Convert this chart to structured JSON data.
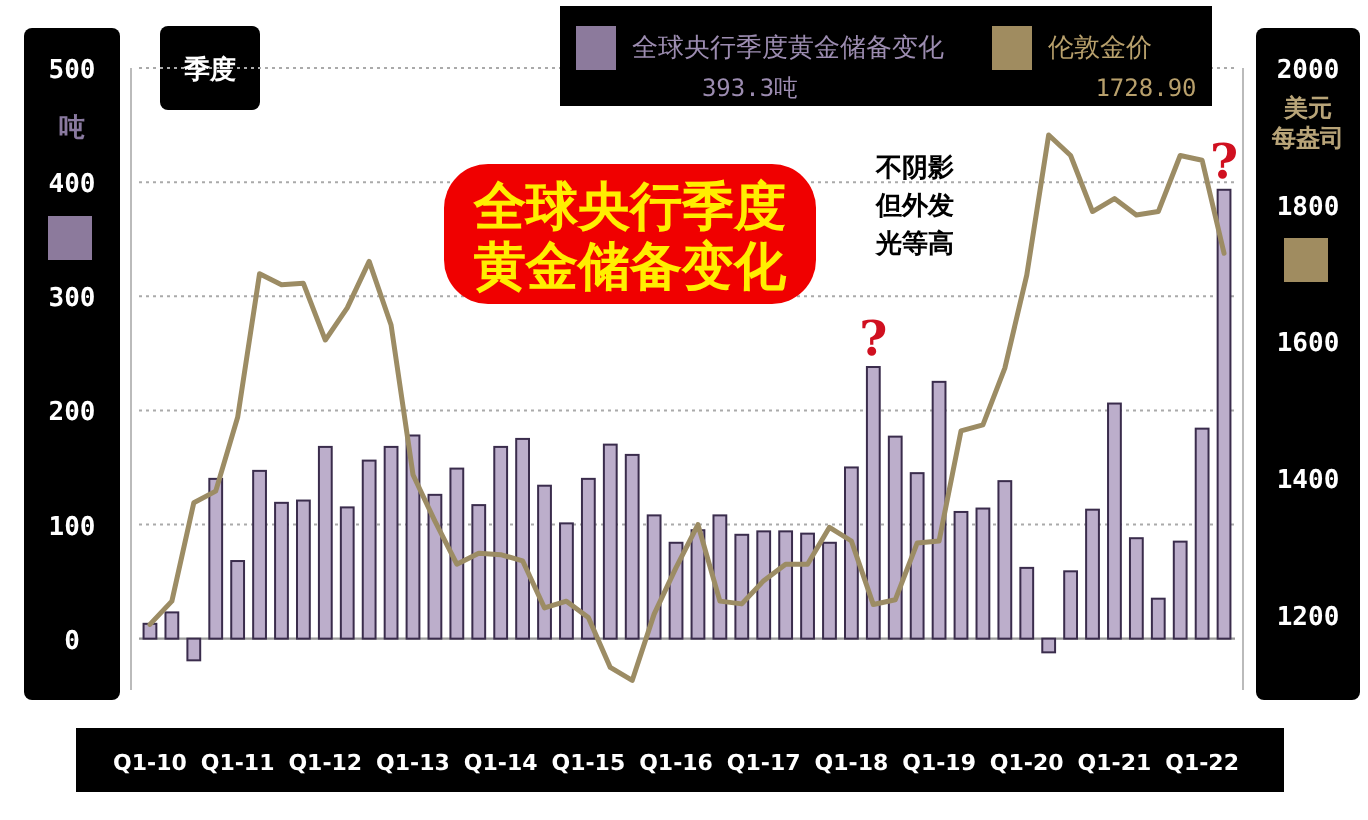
{
  "chart_data": {
    "type": "bar",
    "title": "全球央行季度黄金储备变化",
    "xlabel": "季度",
    "ylabel": "吨",
    "y2label": "美元每盎司",
    "categories": [
      "Q1-10",
      null,
      null,
      null,
      "Q1-11",
      null,
      null,
      null,
      "Q1-12",
      null,
      null,
      null,
      "Q1-13",
      null,
      null,
      null,
      "Q1-14",
      null,
      null,
      null,
      "Q1-15",
      null,
      null,
      null,
      "Q1-16",
      null,
      null,
      null,
      "Q1-17",
      null,
      null,
      null,
      "Q1-18",
      null,
      null,
      null,
      "Q1-19",
      null,
      null,
      null,
      "Q1-20",
      null,
      null,
      null,
      "Q1-21",
      null,
      null,
      null,
      "Q1-22",
      null
    ],
    "series": [
      {
        "name": "全球央行季度黄金储备变化",
        "color": "#bcaecb",
        "values": [
          13,
          23,
          -19,
          140,
          68,
          147,
          119,
          121,
          168,
          115,
          156,
          168,
          178,
          126,
          149,
          117,
          168,
          175,
          134,
          101,
          140,
          170,
          161,
          108,
          84,
          95,
          108,
          91,
          94,
          94,
          92,
          84,
          150,
          238,
          177,
          145,
          225,
          111,
          114,
          138,
          62,
          -12,
          59,
          113,
          206,
          88,
          35,
          85,
          184,
          393.3
        ]
      },
      {
        "name": "伦敦金价",
        "type": "line",
        "axis": "y2",
        "color": "#9c8c64",
        "values": [
          1186,
          1220,
          1364,
          1381,
          1489,
          1699,
          1683,
          1685,
          1602,
          1649,
          1717,
          1624,
          1405,
          1337,
          1274,
          1290,
          1288,
          1279,
          1210,
          1220,
          1196,
          1123,
          1104,
          1201,
          1269,
          1332,
          1220,
          1216,
          1250,
          1274,
          1274,
          1328,
          1308,
          1215,
          1222,
          1305,
          1308,
          1469,
          1478,
          1561,
          1697,
          1902,
          1872,
          1790,
          1809,
          1785,
          1790,
          1872,
          1865,
          1728.9
        ]
      }
    ],
    "ylim": [
      -45,
      500
    ],
    "yticks": [
      0,
      100,
      200,
      300,
      400,
      500
    ],
    "y2lim": [
      1090,
      2000
    ],
    "y2ticks": [
      1200,
      1400,
      1600,
      1800,
      2000
    ],
    "grid": "y",
    "legend": "top",
    "annotations": [
      "393.3吨",
      "1728.90",
      "不阴影但外发光等高",
      {
        "text": "?",
        "y": 238
      },
      {
        "text": "?",
        "y": 393.3
      }
    ]
  }
}
